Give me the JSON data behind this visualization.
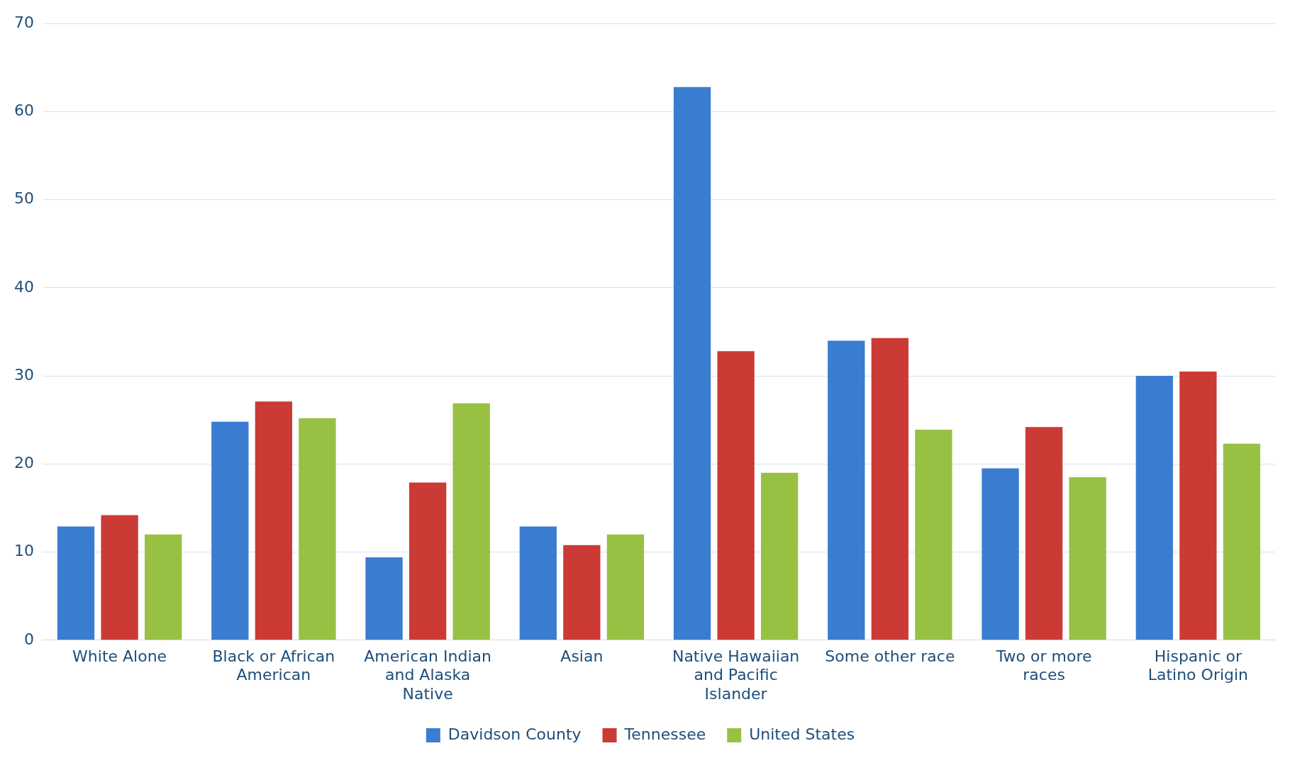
{
  "chart_data": {
    "type": "bar",
    "categories": [
      "White Alone",
      "Black or African American",
      "American Indian and Alaska Native",
      "Asian",
      "Native Hawaiian and Pacific Islander",
      "Some other race",
      "Two or more races",
      "Hispanic or Latino Origin"
    ],
    "series": [
      {
        "name": "Davidson County",
        "color": "#3a7dd0",
        "values": [
          12.9,
          24.8,
          9.4,
          12.9,
          62.8,
          34.0,
          19.5,
          30.0
        ]
      },
      {
        "name": "Tennessee",
        "color": "#cc3a36",
        "values": [
          14.2,
          27.1,
          17.9,
          10.8,
          32.8,
          34.3,
          24.2,
          30.5
        ]
      },
      {
        "name": "United States",
        "color": "#98c143",
        "values": [
          12.0,
          25.2,
          26.9,
          12.0,
          19.0,
          23.9,
          18.5,
          22.3
        ]
      }
    ],
    "ylim": [
      0,
      70
    ],
    "yticks": [
      0,
      10,
      20,
      30,
      40,
      50,
      60,
      70
    ],
    "grid": "y",
    "legend": "bottom"
  }
}
